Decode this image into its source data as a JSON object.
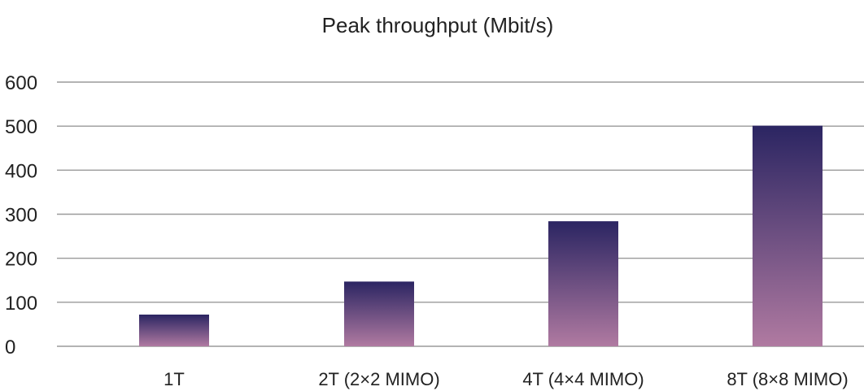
{
  "chart_data": {
    "type": "bar",
    "title": "Peak throughput (Mbit/s)",
    "xlabel": "",
    "ylabel": "",
    "categories": [
      "1T",
      "2T (2×2 MIMO)",
      "4T (4×4 MIMO)",
      "8T (8×8 MIMO)"
    ],
    "values": [
      72,
      147,
      284,
      501
    ],
    "ylim": [
      0,
      600
    ],
    "yticks": [
      0,
      100,
      200,
      300,
      400,
      500,
      600
    ],
    "grid": true,
    "legend": "none",
    "colors": {
      "bar_top": "#2b2562",
      "bar_bottom": "#b07aa1",
      "grid": "#9a9a9a",
      "text": "#222222"
    }
  }
}
